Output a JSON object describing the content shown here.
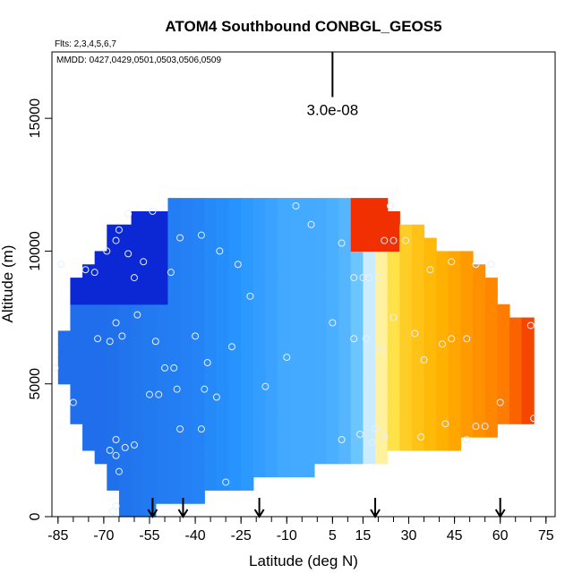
{
  "chart_data": {
    "type": "heatmap",
    "title": "ATOM4 Southbound CONBGL_GEOS5",
    "flights_note": "Flts: 2,3,4,5,6,7",
    "dates_note": "MMDD: 0427,0429,0501,0503,0506,0509",
    "xlabel": "Latitude (deg N)",
    "ylabel": "Altitude (m)",
    "xlim": [
      -87,
      78
    ],
    "ylim": [
      0,
      17500
    ],
    "x_ticks": [
      -85,
      -70,
      -55,
      -40,
      -25,
      -10,
      5,
      15,
      30,
      45,
      60,
      75
    ],
    "x_tick_labels": [
      "-85",
      "-70",
      "-55",
      "-40",
      "-25",
      "-10",
      "5",
      "15",
      "30",
      "45",
      "60",
      "75"
    ],
    "x_minor_step": 5,
    "y_ticks": [
      0,
      5000,
      10000,
      15000
    ],
    "y_tick_labels": [
      "0",
      "5000",
      "10000",
      "15000"
    ],
    "scale_bar": {
      "label": "3.0e-08",
      "lat": 5,
      "alt_low": 15800,
      "alt_high": 17500
    },
    "arrows_lat": [
      -54,
      -44,
      -19,
      19,
      60
    ],
    "colormap": [
      "#0000c8",
      "#1e64e6",
      "#2896ff",
      "#6ec8ff",
      "#ffffff",
      "#ffe650",
      "#ffb400",
      "#ff7800",
      "#e60000"
    ],
    "curtain": {
      "x_step": 4,
      "y_step": 500,
      "columns": [
        {
          "lat": -85,
          "alt_bottom": 5000,
          "alt_top": 7000
        },
        {
          "lat": -81,
          "alt_bottom": 3500,
          "alt_top": 9000
        },
        {
          "lat": -77,
          "alt_bottom": 2500,
          "alt_top": 9500
        },
        {
          "lat": -73,
          "alt_bottom": 2000,
          "alt_top": 10000
        },
        {
          "lat": -69,
          "alt_bottom": 1000,
          "alt_top": 11000
        },
        {
          "lat": -65,
          "alt_bottom": 0,
          "alt_top": 11000
        },
        {
          "lat": -61,
          "alt_bottom": 0,
          "alt_top": 11500
        },
        {
          "lat": -57,
          "alt_bottom": 0,
          "alt_top": 11500
        },
        {
          "lat": -53,
          "alt_bottom": 500,
          "alt_top": 11500
        },
        {
          "lat": -49,
          "alt_bottom": 500,
          "alt_top": 12000
        },
        {
          "lat": -45,
          "alt_bottom": 500,
          "alt_top": 12000
        },
        {
          "lat": -41,
          "alt_bottom": 500,
          "alt_top": 12000
        },
        {
          "lat": -37,
          "alt_bottom": 1000,
          "alt_top": 12000
        },
        {
          "lat": -33,
          "alt_bottom": 1000,
          "alt_top": 12000
        },
        {
          "lat": -29,
          "alt_bottom": 1000,
          "alt_top": 12000
        },
        {
          "lat": -25,
          "alt_bottom": 1000,
          "alt_top": 12000
        },
        {
          "lat": -21,
          "alt_bottom": 1500,
          "alt_top": 12000
        },
        {
          "lat": -17,
          "alt_bottom": 1500,
          "alt_top": 12000
        },
        {
          "lat": -13,
          "alt_bottom": 1500,
          "alt_top": 12000
        },
        {
          "lat": -9,
          "alt_bottom": 1500,
          "alt_top": 12000
        },
        {
          "lat": -5,
          "alt_bottom": 1500,
          "alt_top": 12000
        },
        {
          "lat": -1,
          "alt_bottom": 2000,
          "alt_top": 12000
        },
        {
          "lat": 3,
          "alt_bottom": 2000,
          "alt_top": 12000
        },
        {
          "lat": 7,
          "alt_bottom": 2000,
          "alt_top": 12000
        },
        {
          "lat": 11,
          "alt_bottom": 2000,
          "alt_top": 12000
        },
        {
          "lat": 15,
          "alt_bottom": 2000,
          "alt_top": 12000
        },
        {
          "lat": 19,
          "alt_bottom": 2000,
          "alt_top": 12000
        },
        {
          "lat": 23,
          "alt_bottom": 2500,
          "alt_top": 11500
        },
        {
          "lat": 27,
          "alt_bottom": 2500,
          "alt_top": 11000
        },
        {
          "lat": 31,
          "alt_bottom": 2500,
          "alt_top": 11000
        },
        {
          "lat": 35,
          "alt_bottom": 2500,
          "alt_top": 10500
        },
        {
          "lat": 39,
          "alt_bottom": 2500,
          "alt_top": 10000
        },
        {
          "lat": 43,
          "alt_bottom": 2500,
          "alt_top": 10000
        },
        {
          "lat": 47,
          "alt_bottom": 3000,
          "alt_top": 10000
        },
        {
          "lat": 51,
          "alt_bottom": 3000,
          "alt_top": 9500
        },
        {
          "lat": 55,
          "alt_bottom": 3000,
          "alt_top": 9000
        },
        {
          "lat": 59,
          "alt_bottom": 3500,
          "alt_top": 8000
        },
        {
          "lat": 63,
          "alt_bottom": 3500,
          "alt_top": 7500
        },
        {
          "lat": 67,
          "alt_bottom": 3500,
          "alt_top": 7500
        }
      ],
      "anchors": [
        {
          "lat": -85,
          "level": 0.15
        },
        {
          "lat": -70,
          "level": 0.15
        },
        {
          "lat": -55,
          "level": 0.18
        },
        {
          "lat": -40,
          "level": 0.2
        },
        {
          "lat": -25,
          "level": 0.25
        },
        {
          "lat": -10,
          "level": 0.3
        },
        {
          "lat": 0,
          "level": 0.3
        },
        {
          "lat": 8,
          "level": 0.32
        },
        {
          "lat": 14,
          "level": 0.38
        },
        {
          "lat": 18,
          "level": 0.48
        },
        {
          "lat": 22,
          "level": 0.6
        },
        {
          "lat": 30,
          "level": 0.7
        },
        {
          "lat": 45,
          "level": 0.78
        },
        {
          "lat": 60,
          "level": 0.86
        },
        {
          "lat": 72,
          "level": 0.95
        }
      ],
      "polar_vortex": {
        "lat_max": -50,
        "alt_min": 8000,
        "level": 0.05
      },
      "upper_dry_band": {
        "lat_min": 10,
        "lat_max": 28,
        "alt_min": 10000,
        "level": 0.95
      }
    },
    "samples": [
      {
        "lat": -86,
        "alt": 5600
      },
      {
        "lat": -80,
        "alt": 4300
      },
      {
        "lat": -84,
        "alt": 9500
      },
      {
        "lat": -76,
        "alt": 9300
      },
      {
        "lat": -72,
        "alt": 6700
      },
      {
        "lat": -68,
        "alt": 6600
      },
      {
        "lat": -66,
        "alt": 7300
      },
      {
        "lat": -64,
        "alt": 6800
      },
      {
        "lat": -62,
        "alt": 9900
      },
      {
        "lat": -60,
        "alt": 9000
      },
      {
        "lat": -57,
        "alt": 9600
      },
      {
        "lat": -59,
        "alt": 7600
      },
      {
        "lat": -53,
        "alt": 6600
      },
      {
        "lat": -50,
        "alt": 5600
      },
      {
        "lat": -47,
        "alt": 5600
      },
      {
        "lat": -46,
        "alt": 4800
      },
      {
        "lat": -40,
        "alt": 6800
      },
      {
        "lat": -36,
        "alt": 5800
      },
      {
        "lat": -37,
        "alt": 4800
      },
      {
        "lat": -33,
        "alt": 4500
      },
      {
        "lat": -28,
        "alt": 6400
      },
      {
        "lat": -26,
        "alt": 9500
      },
      {
        "lat": -22,
        "alt": 8300
      },
      {
        "lat": -17,
        "alt": 4900
      },
      {
        "lat": -10,
        "alt": 6000
      },
      {
        "lat": -32,
        "alt": 10000
      },
      {
        "lat": -38,
        "alt": 10600
      },
      {
        "lat": -45,
        "alt": 10500
      },
      {
        "lat": -48,
        "alt": 9200
      },
      {
        "lat": -54,
        "alt": 11500
      },
      {
        "lat": -62,
        "alt": 11400
      },
      {
        "lat": -65,
        "alt": 10800
      },
      {
        "lat": -66,
        "alt": 10400
      },
      {
        "lat": -69,
        "alt": 10000
      },
      {
        "lat": -73,
        "alt": 9200
      },
      {
        "lat": -55,
        "alt": 4600
      },
      {
        "lat": -52,
        "alt": 4600
      },
      {
        "lat": -45,
        "alt": 3300
      },
      {
        "lat": -38,
        "alt": 3300
      },
      {
        "lat": -66,
        "alt": 2900
      },
      {
        "lat": -63,
        "alt": 2600
      },
      {
        "lat": -60,
        "alt": 2700
      },
      {
        "lat": -68,
        "alt": 2500
      },
      {
        "lat": -66,
        "alt": 2300
      },
      {
        "lat": -65,
        "alt": 1700
      },
      {
        "lat": -66,
        "alt": 400
      },
      {
        "lat": -67,
        "alt": 200
      },
      {
        "lat": -30,
        "alt": 1300
      },
      {
        "lat": -7,
        "alt": 11700
      },
      {
        "lat": -2,
        "alt": 11000
      },
      {
        "lat": 5,
        "alt": 7300
      },
      {
        "lat": 8,
        "alt": 10300
      },
      {
        "lat": 12,
        "alt": 9000
      },
      {
        "lat": 15,
        "alt": 9000
      },
      {
        "lat": 17,
        "alt": 9000
      },
      {
        "lat": 20,
        "alt": 9000
      },
      {
        "lat": 22,
        "alt": 10400
      },
      {
        "lat": 25,
        "alt": 10400
      },
      {
        "lat": 29,
        "alt": 10400
      },
      {
        "lat": 24,
        "alt": 11700
      },
      {
        "lat": 12,
        "alt": 6700
      },
      {
        "lat": 16,
        "alt": 6700
      },
      {
        "lat": 21,
        "alt": 6300
      },
      {
        "lat": 25,
        "alt": 7500
      },
      {
        "lat": 32,
        "alt": 6900
      },
      {
        "lat": 35,
        "alt": 5900
      },
      {
        "lat": 41,
        "alt": 6500
      },
      {
        "lat": 44,
        "alt": 6700
      },
      {
        "lat": 49,
        "alt": 6700
      },
      {
        "lat": 60,
        "alt": 4300
      },
      {
        "lat": 55,
        "alt": 3400
      },
      {
        "lat": 52,
        "alt": 3400
      },
      {
        "lat": 49,
        "alt": 2900
      },
      {
        "lat": 42,
        "alt": 3500
      },
      {
        "lat": 34,
        "alt": 3000
      },
      {
        "lat": 22,
        "alt": 3000
      },
      {
        "lat": 19,
        "alt": 3300
      },
      {
        "lat": 14,
        "alt": 3100
      },
      {
        "lat": 8,
        "alt": 2900
      },
      {
        "lat": 18,
        "alt": 2800
      },
      {
        "lat": 37,
        "alt": 9300
      },
      {
        "lat": 44,
        "alt": 9600
      },
      {
        "lat": 52,
        "alt": 9500
      },
      {
        "lat": 57,
        "alt": 9500
      },
      {
        "lat": 70,
        "alt": 7200
      },
      {
        "lat": 71,
        "alt": 3700
      }
    ]
  }
}
